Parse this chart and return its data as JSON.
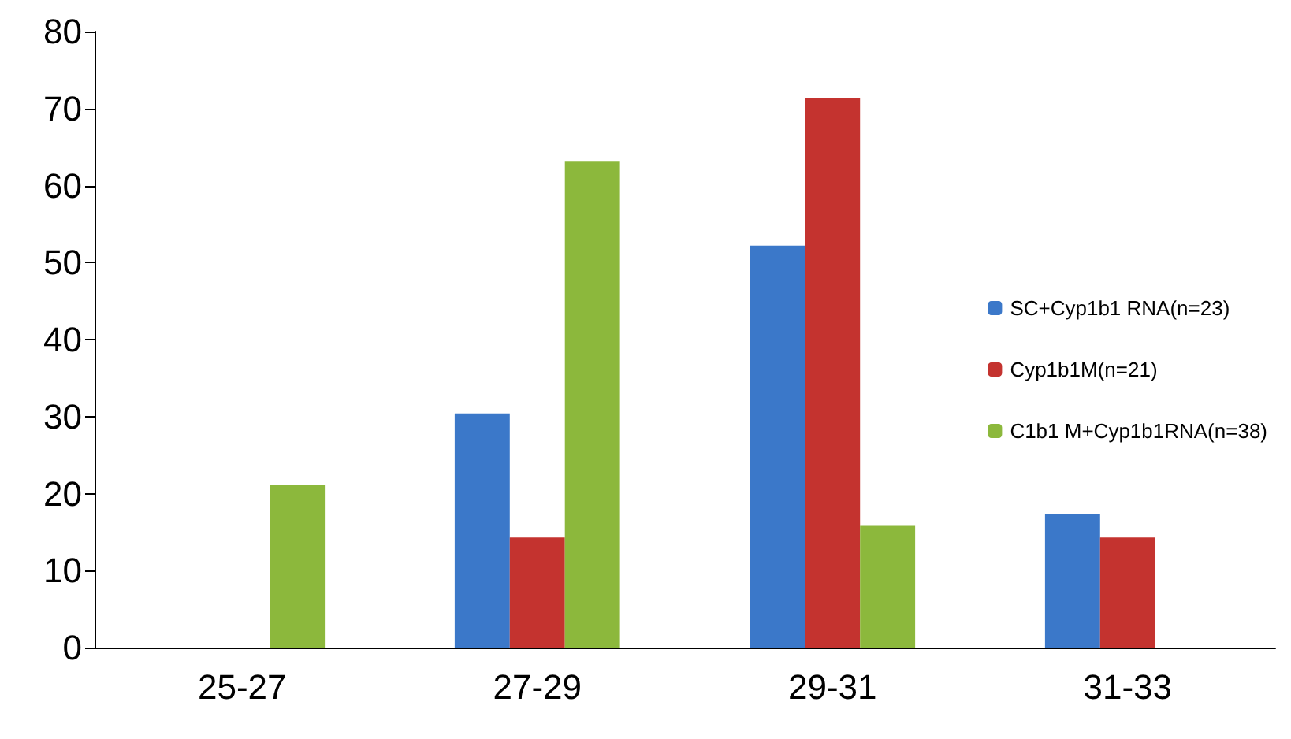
{
  "chart_data": {
    "type": "bar",
    "categories": [
      "25-27",
      "27-29",
      "29-31",
      "31-33"
    ],
    "series": [
      {
        "name": "SC+Cyp1b1 RNA(n=23)",
        "color": "#3b78c9",
        "values": [
          0,
          30.4,
          52.2,
          17.4
        ]
      },
      {
        "name": "Cyp1b1M(n=21)",
        "color": "#c4332f",
        "values": [
          0,
          14.3,
          71.4,
          14.3
        ]
      },
      {
        "name": "C1b1 M+Cyp1b1RNA(n=38)",
        "color": "#8cb83c",
        "values": [
          21.1,
          63.2,
          15.8,
          0
        ]
      }
    ],
    "ylim": [
      0,
      80
    ],
    "yticks": [
      0,
      10,
      20,
      30,
      40,
      50,
      60,
      70,
      80
    ],
    "grid": false,
    "legend": "right"
  }
}
